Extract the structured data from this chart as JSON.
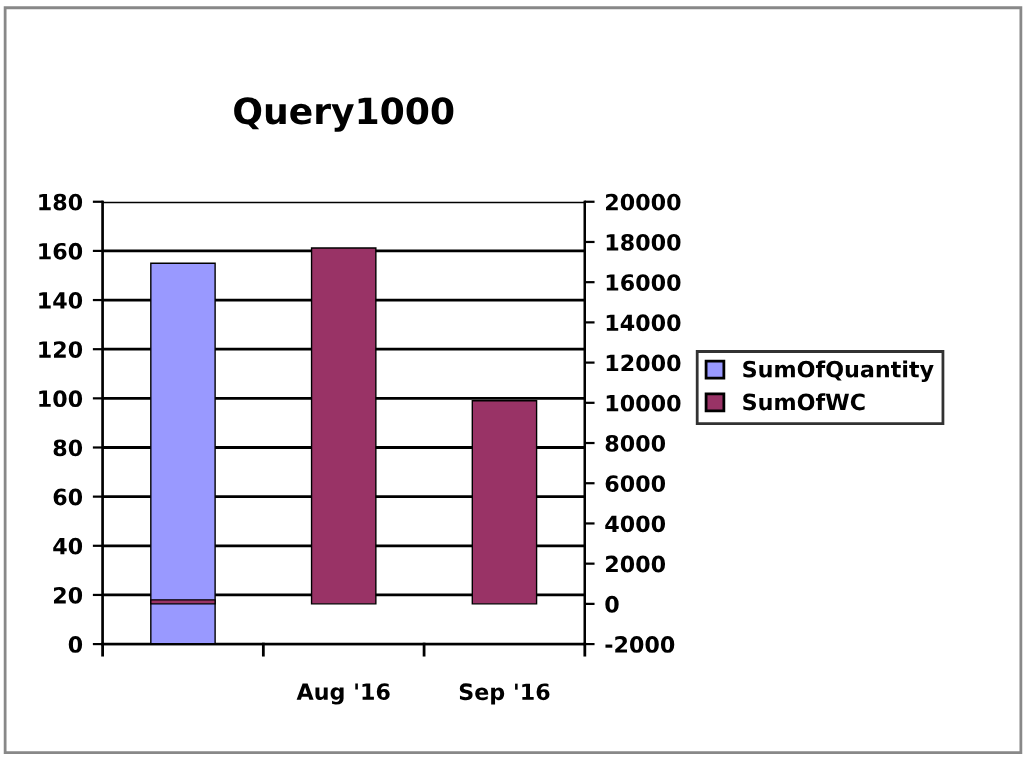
{
  "chart_data": {
    "type": "bar",
    "title": "Query1000",
    "categories": [
      null,
      "Aug '16",
      "Sep '16"
    ],
    "series": [
      {
        "name": "SumOfQuantity",
        "color": "#9999ff",
        "values": [
          155,
          null,
          null
        ]
      },
      {
        "name": "SumOfWC",
        "color": "#993366",
        "values": [
          200,
          17700,
          10100
        ],
        "axis": "y2"
      }
    ],
    "ylim": [
      0,
      180
    ],
    "yticks": [
      0,
      20,
      40,
      60,
      80,
      100,
      120,
      140,
      160,
      180
    ],
    "y2lim": [
      -2000,
      20000
    ],
    "y2ticks": [
      -2000,
      0,
      2000,
      4000,
      6000,
      8000,
      10000,
      12000,
      14000,
      16000,
      18000,
      20000
    ],
    "grid": "y",
    "legend": "right"
  }
}
